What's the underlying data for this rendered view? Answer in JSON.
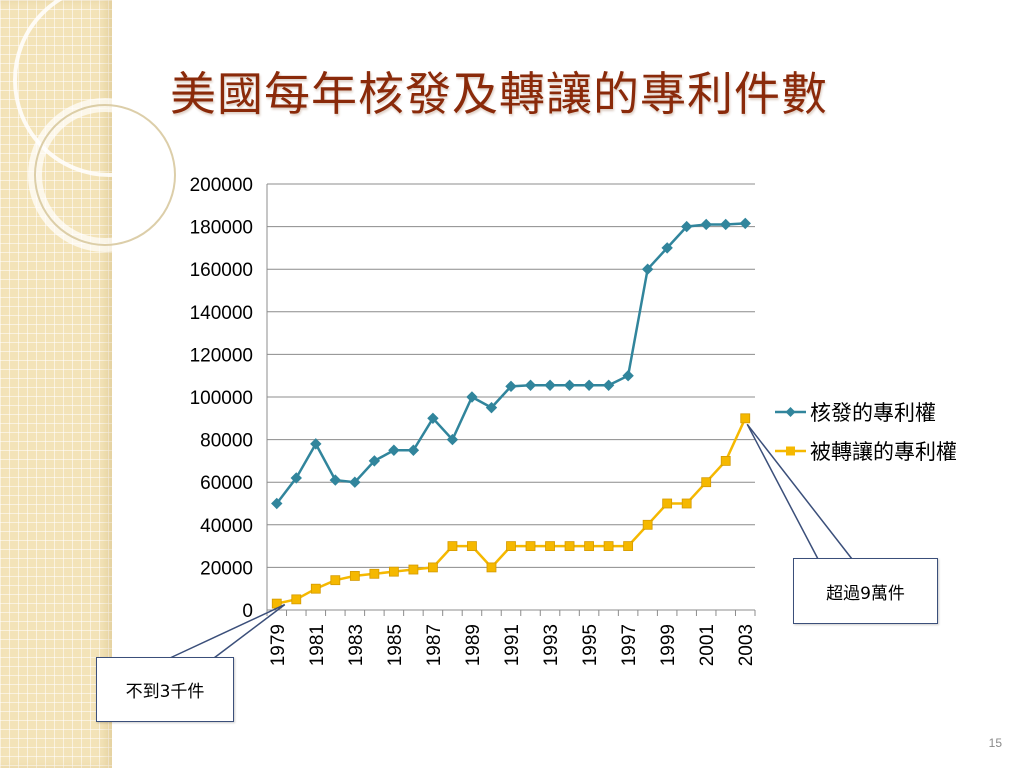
{
  "slide": {
    "title": "美國每年核發及轉讓的專利件數",
    "page_number": "15"
  },
  "callouts": {
    "top_right": "超過9萬件",
    "bottom_left": "不到3千件"
  },
  "colors": {
    "series_issued": "#31859c",
    "series_transferred": "#f5b800",
    "title": "#8a2a0a",
    "callout_border": "#3b4f7a",
    "side_strip": "#f3e3b8"
  },
  "chart_data": {
    "type": "line",
    "x": [
      1979,
      1980,
      1981,
      1982,
      1983,
      1984,
      1985,
      1986,
      1987,
      1988,
      1989,
      1990,
      1991,
      1992,
      1993,
      1994,
      1995,
      1996,
      1997,
      1998,
      1999,
      2000,
      2001,
      2002,
      2003
    ],
    "x_tick_labels": [
      "1979",
      "1981",
      "1983",
      "1985",
      "1987",
      "1989",
      "1991",
      "1993",
      "1995",
      "1997",
      "1999",
      "2001",
      "2003"
    ],
    "y_tick_labels": [
      "0",
      "20000",
      "40000",
      "60000",
      "80000",
      "100000",
      "120000",
      "140000",
      "160000",
      "180000",
      "200000"
    ],
    "ylim": [
      0,
      200000
    ],
    "grid": true,
    "legend": "right",
    "series": [
      {
        "name": "核發的專利權",
        "marker": "diamond",
        "values": [
          50000,
          62000,
          78000,
          61000,
          60000,
          70000,
          75000,
          75000,
          90000,
          80000,
          100000,
          95000,
          105000,
          105500,
          105500,
          105500,
          105500,
          105500,
          110000,
          160000,
          170000,
          180000,
          181000,
          181000,
          181500
        ]
      },
      {
        "name": "被轉讓的專利權",
        "marker": "square",
        "values": [
          3000,
          5000,
          10000,
          14000,
          16000,
          17000,
          18000,
          19000,
          20000,
          30000,
          30000,
          20000,
          30000,
          30000,
          30000,
          30000,
          30000,
          30000,
          30000,
          40000,
          50000,
          50000,
          60000,
          70000,
          90000
        ]
      }
    ]
  }
}
